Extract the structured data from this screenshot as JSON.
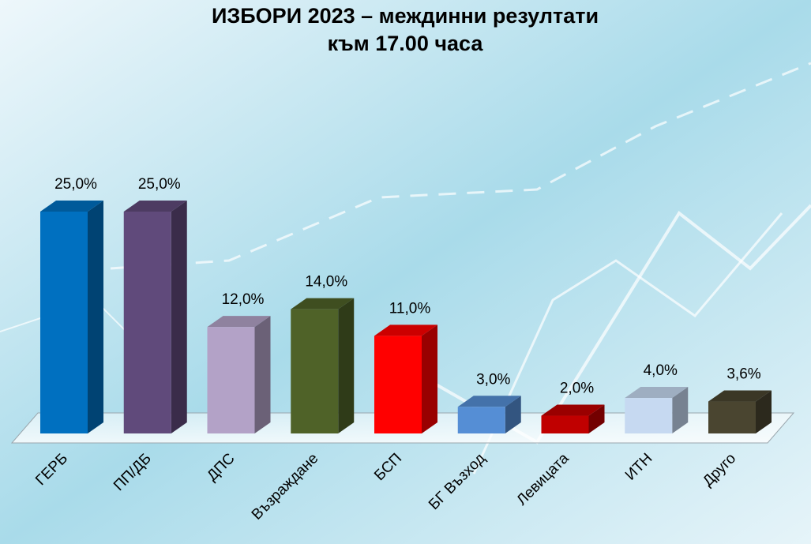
{
  "chart_data": {
    "type": "bar3d",
    "title": "ИЗБОРИ 2023 – междинни резултати",
    "subtitle": "към 17.00 часа",
    "categories": [
      "ГЕРБ",
      "ПП/ДБ",
      "ДПС",
      "Възраждане",
      "БСП",
      "БГ Възход",
      "Левицата",
      "ИТН",
      "Друго"
    ],
    "values": [
      25,
      25,
      12,
      14,
      11,
      3,
      2,
      4,
      3.6
    ],
    "value_labels": [
      "25,0%",
      "25,0%",
      "12,0%",
      "14,0%",
      "11,0%",
      "3,0%",
      "2,0%",
      "4,0%",
      "3,6%"
    ],
    "colors": [
      "#0070c0",
      "#604a7b",
      "#b3a2c7",
      "#4f6228",
      "#ff0000",
      "#558ed5",
      "#c00000",
      "#c6d9f1",
      "#4a4530"
    ]
  }
}
